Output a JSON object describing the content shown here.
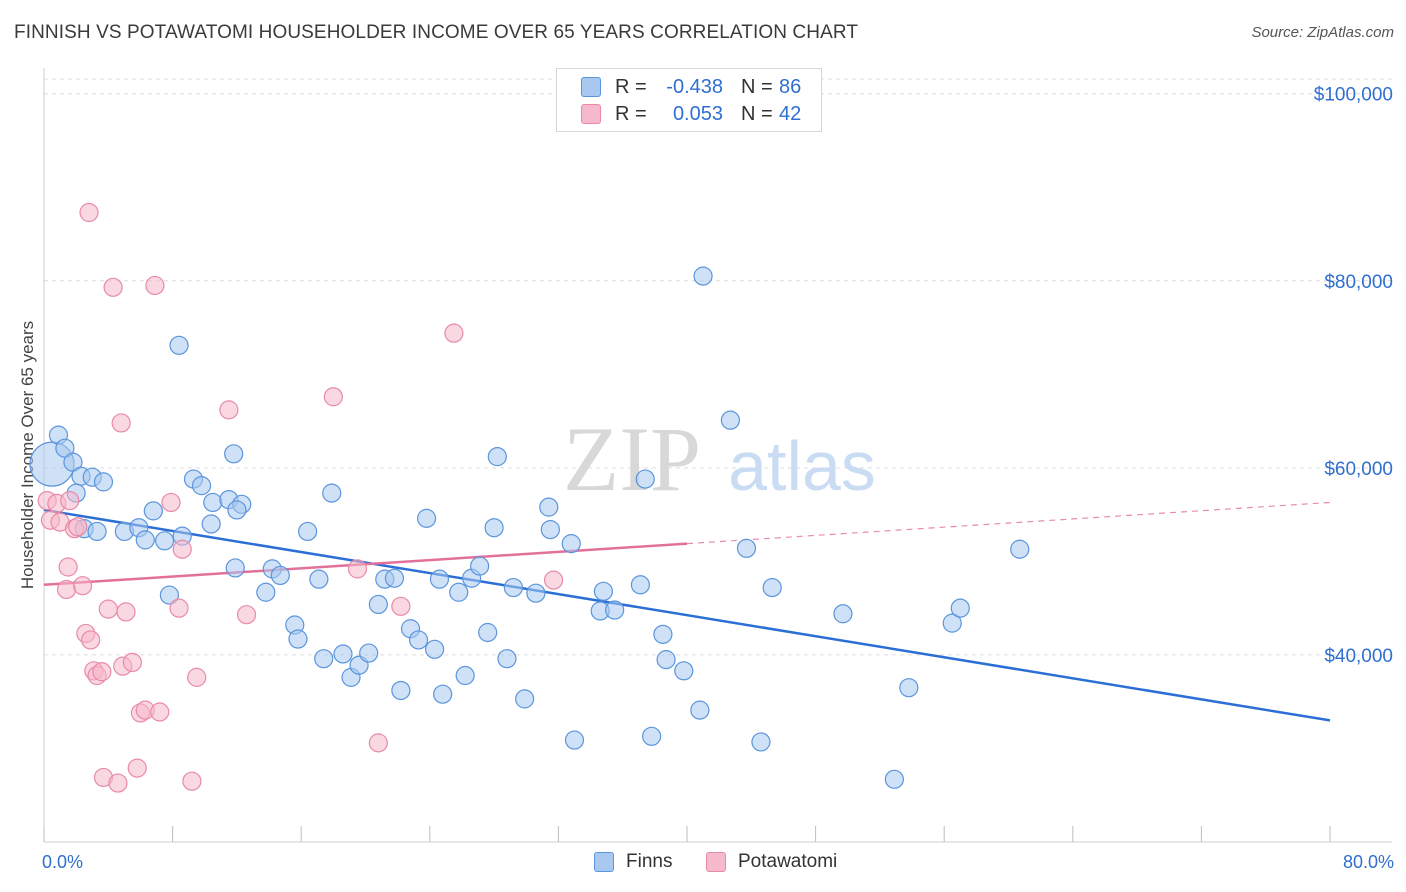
{
  "title": "FINNISH VS POTAWATOMI HOUSEHOLDER INCOME OVER 65 YEARS CORRELATION CHART",
  "source": "Source: ZipAtlas.com",
  "watermark": {
    "zip": "ZIP",
    "atlas": "atlas"
  },
  "legend_top": {
    "rows": [
      {
        "r_label": "R =",
        "r_value": "-0.438",
        "n_label": "N =",
        "n_value": "86",
        "color": "#a8c8f0"
      },
      {
        "r_label": "R =",
        "r_value": "0.053",
        "n_label": "N =",
        "n_value": "42",
        "color": "#f6b8cb"
      }
    ]
  },
  "legend_bottom": [
    {
      "label": "Finns",
      "color": "#a8c8f0"
    },
    {
      "label": "Potawatomi",
      "color": "#f6b8cb"
    }
  ],
  "x_axis": {
    "min_label": "0.0%",
    "max_label": "80.0%"
  },
  "chart_data": {
    "type": "scatter",
    "title": "FINNISH VS POTAWATOMI HOUSEHOLDER INCOME OVER 65 YEARS CORRELATION CHART",
    "xlabel": "",
    "ylabel": "Householder Income Over 65 years",
    "xlim": [
      0,
      80
    ],
    "ylim": [
      20000,
      102000
    ],
    "y_ticks": [
      {
        "value": 40000,
        "label": "$40,000"
      },
      {
        "value": 60000,
        "label": "$60,000"
      },
      {
        "value": 80000,
        "label": "$80,000"
      },
      {
        "value": 100000,
        "label": "$100,000"
      }
    ],
    "x_tick_count": 11,
    "grid": "horizontal dashed",
    "series": [
      {
        "name": "Finns",
        "color": "#a8c8f0",
        "stroke": "#5b95dc",
        "trend_color": "#2b6fd6",
        "trend": {
          "x0": 0,
          "y0": 55500,
          "x1": 80,
          "y1": 33000,
          "dashed_from": 80
        },
        "points": [
          [
            0.5,
            60400
          ],
          [
            0.9,
            63500
          ],
          [
            1.3,
            62100
          ],
          [
            1.8,
            60600
          ],
          [
            2.3,
            59100
          ],
          [
            2.0,
            57300
          ],
          [
            3.0,
            59000
          ],
          [
            3.7,
            58500
          ],
          [
            2.5,
            53500
          ],
          [
            3.3,
            53200
          ],
          [
            5.0,
            53200
          ],
          [
            6.8,
            55400
          ],
          [
            5.9,
            53600
          ],
          [
            6.3,
            52300
          ],
          [
            7.5,
            52200
          ],
          [
            8.6,
            52700
          ],
          [
            9.3,
            58800
          ],
          [
            9.8,
            58100
          ],
          [
            10.5,
            56300
          ],
          [
            11.5,
            56600
          ],
          [
            12.3,
            56100
          ],
          [
            12.0,
            55500
          ],
          [
            10.4,
            54000
          ],
          [
            11.8,
            61500
          ],
          [
            8.4,
            73100
          ],
          [
            7.8,
            46400
          ],
          [
            11.9,
            49300
          ],
          [
            13.8,
            46700
          ],
          [
            14.2,
            49200
          ],
          [
            14.7,
            48500
          ],
          [
            15.6,
            43200
          ],
          [
            15.8,
            41700
          ],
          [
            16.4,
            53200
          ],
          [
            17.1,
            48100
          ],
          [
            17.9,
            57300
          ],
          [
            17.4,
            39600
          ],
          [
            18.6,
            40100
          ],
          [
            19.1,
            37600
          ],
          [
            19.6,
            38900
          ],
          [
            20.2,
            40200
          ],
          [
            20.8,
            45400
          ],
          [
            21.2,
            48100
          ],
          [
            21.8,
            48200
          ],
          [
            22.2,
            36200
          ],
          [
            22.8,
            42800
          ],
          [
            23.3,
            41600
          ],
          [
            23.8,
            54600
          ],
          [
            24.3,
            40600
          ],
          [
            24.8,
            35800
          ],
          [
            24.6,
            48100
          ],
          [
            25.8,
            46700
          ],
          [
            26.2,
            37800
          ],
          [
            26.6,
            48200
          ],
          [
            27.1,
            49500
          ],
          [
            27.6,
            42400
          ],
          [
            28.0,
            53600
          ],
          [
            28.2,
            61200
          ],
          [
            28.8,
            39600
          ],
          [
            29.2,
            47200
          ],
          [
            29.9,
            35300
          ],
          [
            30.6,
            46600
          ],
          [
            31.4,
            55800
          ],
          [
            31.5,
            53400
          ],
          [
            32.8,
            51900
          ],
          [
            33.0,
            30900
          ],
          [
            34.6,
            44700
          ],
          [
            34.8,
            46800
          ],
          [
            35.5,
            44800
          ],
          [
            37.1,
            47500
          ],
          [
            37.4,
            58800
          ],
          [
            37.8,
            31300
          ],
          [
            38.5,
            42200
          ],
          [
            38.7,
            39500
          ],
          [
            39.8,
            38300
          ],
          [
            40.8,
            34100
          ],
          [
            41.0,
            80500
          ],
          [
            42.7,
            65100
          ],
          [
            43.7,
            51400
          ],
          [
            44.6,
            30700
          ],
          [
            45.3,
            47200
          ],
          [
            49.7,
            44400
          ],
          [
            52.9,
            26700
          ],
          [
            53.8,
            36500
          ],
          [
            56.5,
            43400
          ],
          [
            57.0,
            45000
          ],
          [
            60.7,
            51300
          ]
        ]
      },
      {
        "name": "Potawatomi",
        "color": "#f6b8cb",
        "stroke": "#e88aa8",
        "trend_color": "#e2709a",
        "trend": {
          "x0": 0,
          "y0": 47500,
          "x1": 80,
          "y1": 56300,
          "dashed_from": 40
        },
        "points": [
          [
            0.2,
            56500
          ],
          [
            0.4,
            54400
          ],
          [
            0.8,
            56200
          ],
          [
            1.0,
            54200
          ],
          [
            1.5,
            49400
          ],
          [
            1.4,
            47000
          ],
          [
            1.6,
            56500
          ],
          [
            1.9,
            53500
          ],
          [
            2.1,
            53700
          ],
          [
            2.4,
            47400
          ],
          [
            2.6,
            42300
          ],
          [
            2.9,
            41600
          ],
          [
            3.1,
            38300
          ],
          [
            3.3,
            37800
          ],
          [
            3.6,
            38200
          ],
          [
            2.8,
            87300
          ],
          [
            4.3,
            79300
          ],
          [
            4.0,
            44900
          ],
          [
            3.7,
            26900
          ],
          [
            4.6,
            26300
          ],
          [
            4.8,
            64800
          ],
          [
            4.9,
            38800
          ],
          [
            5.1,
            44600
          ],
          [
            5.5,
            39200
          ],
          [
            5.8,
            27900
          ],
          [
            6.0,
            33800
          ],
          [
            6.3,
            34100
          ],
          [
            6.9,
            79500
          ],
          [
            7.2,
            33900
          ],
          [
            7.9,
            56300
          ],
          [
            8.4,
            45000
          ],
          [
            8.6,
            51300
          ],
          [
            9.2,
            26500
          ],
          [
            9.5,
            37600
          ],
          [
            11.5,
            66200
          ],
          [
            12.6,
            44300
          ],
          [
            18.0,
            67600
          ],
          [
            19.5,
            49200
          ],
          [
            20.8,
            30600
          ],
          [
            22.2,
            45200
          ],
          [
            25.5,
            74400
          ],
          [
            31.7,
            48000
          ]
        ]
      }
    ]
  }
}
